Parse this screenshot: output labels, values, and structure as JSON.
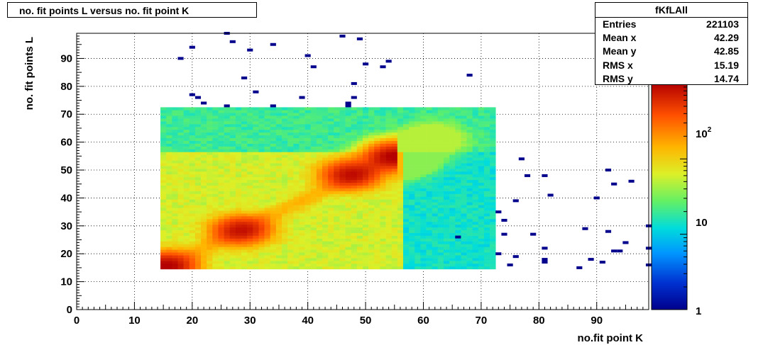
{
  "chart_data": {
    "type": "heatmap",
    "title": "no. fit points L versus no. fit point K",
    "xlabel": "no.fit point K",
    "ylabel": "no. fit points  L",
    "xlim": [
      0,
      99
    ],
    "ylim": [
      0,
      99
    ],
    "x_ticks": [
      "0",
      "10",
      "20",
      "30",
      "40",
      "50",
      "60",
      "70",
      "80",
      "90"
    ],
    "y_ticks": [
      "0",
      "10",
      "20",
      "30",
      "40",
      "50",
      "60",
      "70",
      "80",
      "90"
    ],
    "grid": true,
    "colorbar": {
      "scale": "log",
      "min": 1,
      "max": 1000,
      "tick_labels": [
        "1",
        "10",
        "10^2"
      ]
    },
    "regions": [
      {
        "name": "upper band",
        "x": [
          14.5,
          72.5
        ],
        "y": [
          56.5,
          72.5
        ],
        "level": 20
      },
      {
        "name": "main block",
        "x": [
          14.5,
          56.5
        ],
        "y": [
          14.5,
          56.5
        ],
        "level": 60
      },
      {
        "name": "right block",
        "x": [
          56.5,
          72.5
        ],
        "y": [
          14.5,
          56.5
        ],
        "level": 14
      }
    ],
    "hotspots": [
      {
        "x": 28.5,
        "y": 28.5,
        "level": 700
      },
      {
        "x": 47.5,
        "y": 48.5,
        "level": 750
      },
      {
        "x": 55,
        "y": 55,
        "level": 900
      },
      {
        "x": 61.5,
        "y": 61,
        "level": 120
      },
      {
        "x": 15.5,
        "y": 15.5,
        "level": 900
      }
    ],
    "outliers": [
      [
        26,
        99
      ],
      [
        34,
        95
      ],
      [
        46,
        98
      ],
      [
        49,
        97
      ],
      [
        27,
        96
      ],
      [
        20,
        94
      ],
      [
        30,
        93
      ],
      [
        40,
        91
      ],
      [
        18,
        90
      ],
      [
        54,
        89
      ],
      [
        50,
        88
      ],
      [
        41,
        87
      ],
      [
        53,
        87
      ],
      [
        68,
        84
      ],
      [
        29,
        83
      ],
      [
        48,
        81
      ],
      [
        31,
        78
      ],
      [
        20,
        77
      ],
      [
        21,
        76
      ],
      [
        39,
        76
      ],
      [
        48,
        76
      ],
      [
        22,
        74
      ],
      [
        47,
        74
      ],
      [
        26,
        73
      ],
      [
        34,
        73
      ],
      [
        47,
        73
      ],
      [
        77,
        54
      ],
      [
        78,
        48
      ],
      [
        81,
        48
      ],
      [
        92,
        50
      ],
      [
        96,
        46
      ],
      [
        93,
        45
      ],
      [
        82,
        41
      ],
      [
        90,
        40
      ],
      [
        76,
        39
      ],
      [
        73,
        35
      ],
      [
        74,
        32
      ],
      [
        99,
        30
      ],
      [
        88,
        29
      ],
      [
        92,
        28
      ],
      [
        74,
        27
      ],
      [
        79,
        27
      ],
      [
        66,
        26
      ],
      [
        95,
        24
      ],
      [
        81,
        22
      ],
      [
        99,
        22
      ],
      [
        93,
        21
      ],
      [
        94,
        21
      ],
      [
        73,
        20
      ],
      [
        76,
        19
      ],
      [
        81,
        18
      ],
      [
        81,
        17
      ],
      [
        89,
        18
      ],
      [
        91,
        17
      ],
      [
        75,
        16
      ],
      [
        99,
        16
      ],
      [
        87,
        15
      ]
    ]
  },
  "stats": {
    "title": "fKfLAll",
    "rows": [
      {
        "label": "Entries",
        "value": "221103"
      },
      {
        "label": "Mean x",
        "value": "42.29"
      },
      {
        "label": "Mean y",
        "value": "42.85"
      },
      {
        "label": "RMS x",
        "value": "15.19"
      },
      {
        "label": "RMS y",
        "value": "14.74"
      }
    ]
  }
}
